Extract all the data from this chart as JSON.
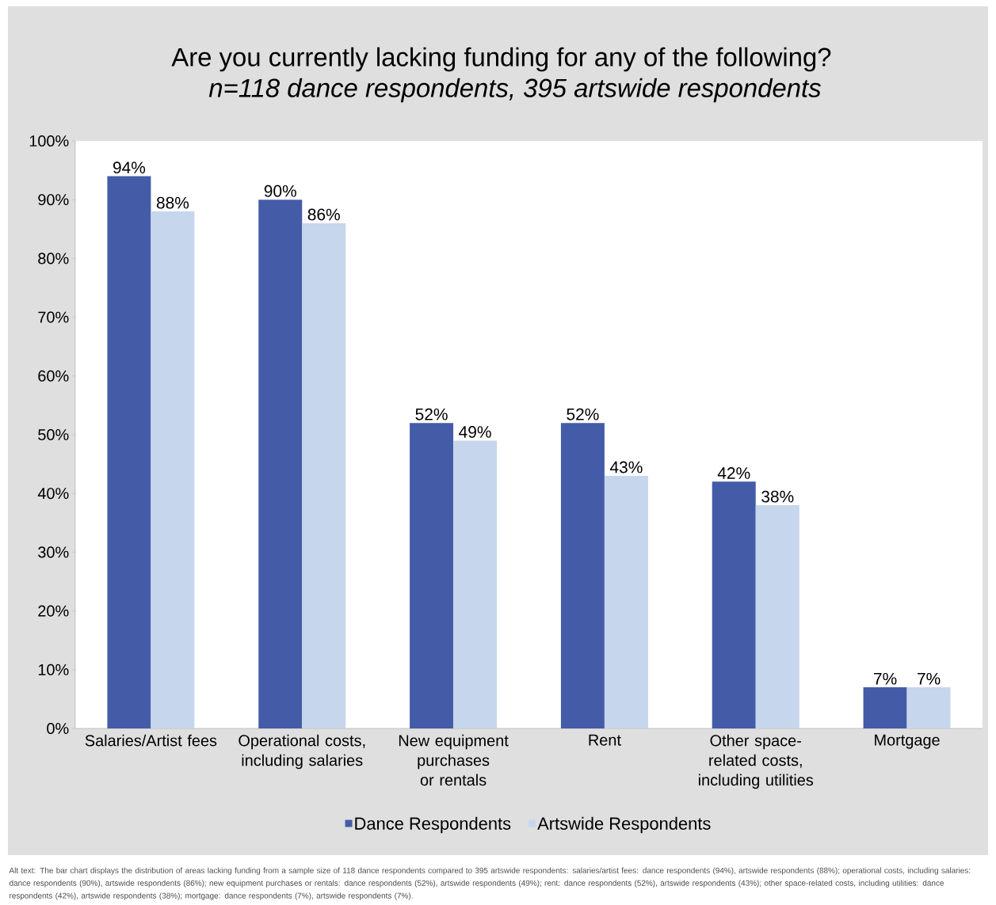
{
  "chart_data": {
    "type": "bar",
    "title": "Are you currently lacking funding for any of the following?",
    "subtitle": "n=118 dance respondents, 395 artswide respondents",
    "categories": [
      "Salaries/Artist fees",
      "Operational costs, including salaries",
      "New equipment purchases or rentals",
      "Rent",
      "Other space-related costs, including utilities",
      "Mortgage"
    ],
    "series": [
      {
        "name": "Dance Respondents",
        "color": "#445ca8",
        "values": [
          94,
          90,
          52,
          52,
          42,
          7
        ],
        "value_labels": [
          "94%",
          "90%",
          "52%",
          "52%",
          "42%",
          "7%"
        ]
      },
      {
        "name": "Artswide Respondents",
        "color": "#c6d6ec",
        "values": [
          88,
          86,
          49,
          43,
          38,
          7
        ],
        "value_labels": [
          "88%",
          "86%",
          "49%",
          "43%",
          "38%",
          "7%"
        ]
      }
    ],
    "ylim": [
      0,
      100
    ],
    "yticks": [
      {
        "value": 0,
        "label": "0%"
      },
      {
        "value": 10,
        "label": "10%"
      },
      {
        "value": 20,
        "label": "20%"
      },
      {
        "value": 30,
        "label": "30%"
      },
      {
        "value": 40,
        "label": "40%"
      },
      {
        "value": 50,
        "label": "50%"
      },
      {
        "value": 60,
        "label": "60%"
      },
      {
        "value": 70,
        "label": "70%"
      },
      {
        "value": 80,
        "label": "80%"
      },
      {
        "value": 90,
        "label": "90%"
      },
      {
        "value": 100,
        "label": "100%"
      }
    ],
    "legend": "bottom",
    "grid": false,
    "annotations": [
      "Alt text: The bar chart displays the distribution of areas lacking funding from a sample size of 118 dance respondents compared to 395 artswide respondents: salaries/artist fees: dance respondents (94%), artswide respondents (88%); operational costs, including salaries: dance respondents (90%), artswide respondents (86%); new equipment purchases or rentals: dance respondents (52%), artswide respondents (49%); rent: dance respondents (52%), artswide respondents (43%); other space-related costs, including utilities: dance respondents (42%), artswide respondents (38%); mortgage: dance respondents (7%), artswide respondents (7%)."
    ]
  }
}
